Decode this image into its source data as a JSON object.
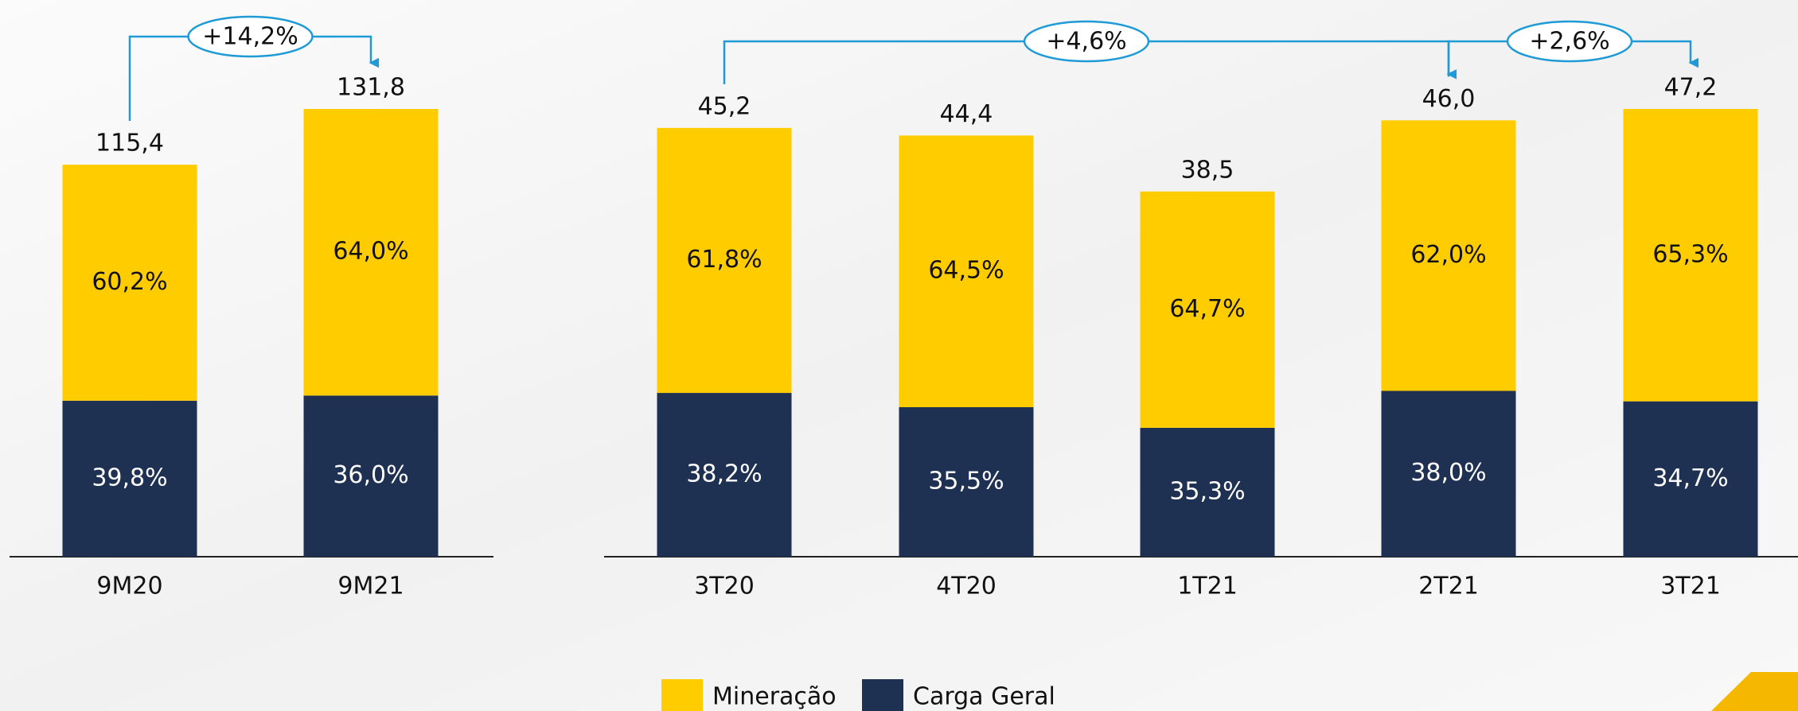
{
  "chart_data": [
    {
      "type": "bar",
      "categories": [
        "9M20",
        "9M21"
      ],
      "totals": [
        115.4,
        131.8
      ],
      "total_labels": [
        "115,4",
        "131,8"
      ],
      "series": [
        {
          "name": "Mineração",
          "color": "#FFCC00",
          "values": [
            60.2,
            64.0
          ],
          "value_labels": [
            "60,2%",
            "64,0%"
          ]
        },
        {
          "name": "Carga Geral",
          "color": "#1F3152",
          "values": [
            39.8,
            36.0
          ],
          "value_labels": [
            "39,8%",
            "36,0%"
          ]
        }
      ],
      "annotations": [
        "+14,2%"
      ]
    },
    {
      "type": "bar",
      "categories": [
        "3T20",
        "4T20",
        "1T21",
        "2T21",
        "3T21"
      ],
      "totals": [
        45.2,
        44.4,
        38.5,
        46.0,
        47.2
      ],
      "total_labels": [
        "45,2",
        "44,4",
        "38,5",
        "46,0",
        "47,2"
      ],
      "series": [
        {
          "color": "#FFCC00",
          "values": [
            61.8,
            64.5,
            64.7,
            62.0,
            65.3
          ],
          "value_labels": [
            "61,8%",
            "64,5%",
            "64,7%",
            "62,0%",
            "65,3%"
          ]
        },
        {
          "color": "#1F3152",
          "values": [
            38.2,
            35.5,
            35.3,
            38.0,
            34.7
          ],
          "value_labels": [
            "38,2%",
            "35,5%",
            "35,3%",
            "38,0%",
            "34,7%"
          ]
        }
      ],
      "annotations": [
        "+4,6%",
        "+2,6%"
      ]
    }
  ]
}
